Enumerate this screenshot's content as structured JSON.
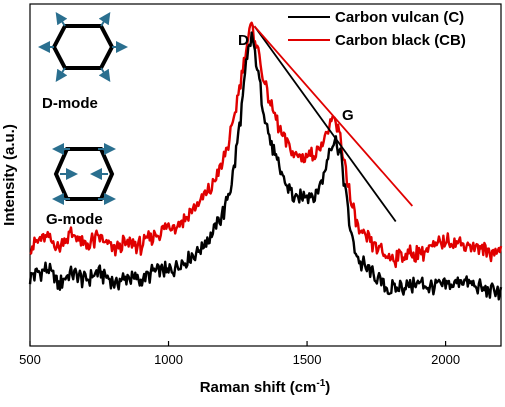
{
  "chart_data": {
    "type": "line",
    "xlabel": "Raman shift (cm",
    "xlabel_sup": "-1",
    "xlabel_end": ")",
    "ylabel": "Intensity (a.u.)",
    "xlim": [
      500,
      2200
    ],
    "ylim": [
      0,
      100
    ],
    "x_ticks": [
      "500",
      "1000",
      "1500",
      "2000"
    ],
    "legend_position": "top-right",
    "grid": false,
    "series": [
      {
        "name": "Carbon vulcan (C)",
        "color": "#000000",
        "points": [
          [
            500,
            17
          ],
          [
            560,
            20
          ],
          [
            600,
            15
          ],
          [
            650,
            18
          ],
          [
            700,
            16
          ],
          [
            750,
            19
          ],
          [
            800,
            15
          ],
          [
            850,
            17
          ],
          [
            900,
            16
          ],
          [
            950,
            19
          ],
          [
            1000,
            19
          ],
          [
            1050,
            22
          ],
          [
            1100,
            25
          ],
          [
            1150,
            30
          ],
          [
            1200,
            38
          ],
          [
            1230,
            48
          ],
          [
            1260,
            68
          ],
          [
            1280,
            85
          ],
          [
            1300,
            95
          ],
          [
            1320,
            85
          ],
          [
            1340,
            72
          ],
          [
            1370,
            60
          ],
          [
            1400,
            52
          ],
          [
            1430,
            46
          ],
          [
            1460,
            42
          ],
          [
            1500,
            44
          ],
          [
            1530,
            43
          ],
          [
            1560,
            50
          ],
          [
            1580,
            58
          ],
          [
            1600,
            62
          ],
          [
            1620,
            57
          ],
          [
            1640,
            44
          ],
          [
            1660,
            30
          ],
          [
            1690,
            22
          ],
          [
            1750,
            17
          ],
          [
            1800,
            13
          ],
          [
            1850,
            14
          ],
          [
            1900,
            15
          ],
          [
            1950,
            14
          ],
          [
            2000,
            14
          ],
          [
            2050,
            16
          ],
          [
            2100,
            14
          ],
          [
            2150,
            13
          ],
          [
            2200,
            12
          ]
        ]
      },
      {
        "name": "Carbon black (CB)",
        "color": "#e00000",
        "points": [
          [
            500,
            27
          ],
          [
            560,
            30
          ],
          [
            600,
            27
          ],
          [
            650,
            31
          ],
          [
            700,
            27
          ],
          [
            750,
            30
          ],
          [
            800,
            26
          ],
          [
            850,
            28
          ],
          [
            900,
            27
          ],
          [
            950,
            31
          ],
          [
            1000,
            33
          ],
          [
            1050,
            35
          ],
          [
            1100,
            40
          ],
          [
            1150,
            45
          ],
          [
            1200,
            55
          ],
          [
            1230,
            65
          ],
          [
            1260,
            80
          ],
          [
            1280,
            92
          ],
          [
            1300,
            98
          ],
          [
            1320,
            92
          ],
          [
            1340,
            82
          ],
          [
            1370,
            72
          ],
          [
            1400,
            65
          ],
          [
            1430,
            60
          ],
          [
            1460,
            56
          ],
          [
            1500,
            56
          ],
          [
            1540,
            58
          ],
          [
            1570,
            63
          ],
          [
            1600,
            68
          ],
          [
            1620,
            62
          ],
          [
            1640,
            52
          ],
          [
            1660,
            40
          ],
          [
            1690,
            31
          ],
          [
            1750,
            27
          ],
          [
            1800,
            23
          ],
          [
            1850,
            24
          ],
          [
            1900,
            25
          ],
          [
            1950,
            26
          ],
          [
            2000,
            29
          ],
          [
            2050,
            28
          ],
          [
            2100,
            27
          ],
          [
            2150,
            25
          ],
          [
            2200,
            26
          ]
        ]
      }
    ],
    "annotations": {
      "peak_d": "D",
      "peak_g": "G",
      "d_mode": "D-mode",
      "g_mode": "G-mode"
    },
    "guide_lines": [
      {
        "color": "#000000",
        "from": [
          1310,
          98
        ],
        "to": [
          1820,
          35
        ]
      },
      {
        "color": "#e00000",
        "from": [
          1310,
          98
        ],
        "to": [
          1880,
          40
        ]
      }
    ]
  }
}
